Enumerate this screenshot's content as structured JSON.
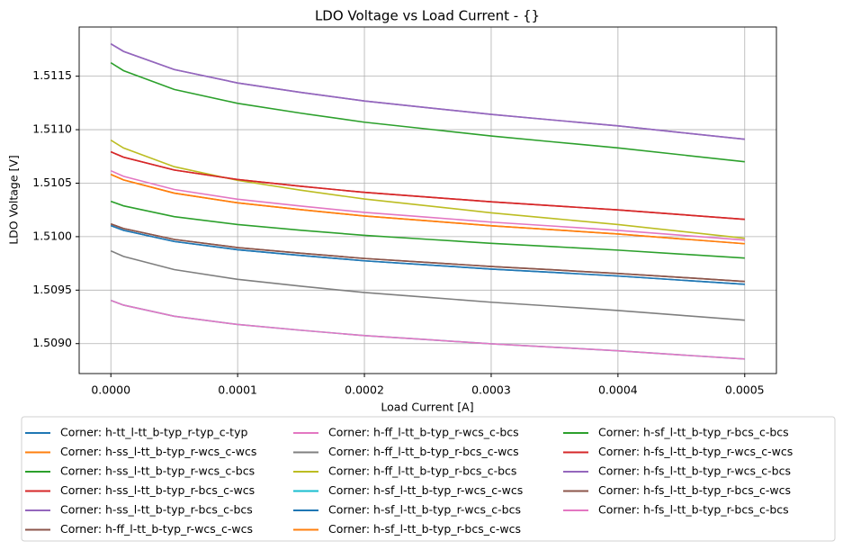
{
  "chart_data": {
    "type": "line",
    "title": "LDO Voltage vs Load Current - {}",
    "x_label": "Load Current [A]",
    "y_label": "LDO Voltage [V]",
    "x": [
      0,
      1e-05,
      5e-05,
      0.0001,
      0.00015,
      0.0002,
      0.00025,
      0.0003,
      0.00035,
      0.0004,
      0.00045,
      0.0005
    ],
    "xlim": [
      -2.5e-05,
      0.000525
    ],
    "xticks": [
      {
        "value": 0,
        "label": "0.0000"
      },
      0.0001,
      0.0002,
      0.0003,
      0.0004,
      0.0005
    ],
    "ylim": [
      1.50872,
      1.51196
    ],
    "yticks": [
      {
        "value": 1.509,
        "label": "1.5090"
      },
      1.5095,
      {
        "value": 1.51,
        "label": "1.5100"
      },
      1.5105,
      {
        "value": 1.511,
        "label": "1.5110"
      },
      1.5115
    ],
    "grid": true,
    "legend": "below",
    "series": [
      {
        "name": "Corner: h-tt_l-tt_b-typ_r-typ_c-typ",
        "color": "#1f77b4",
        "values": [
          1.510103,
          1.510059,
          1.509955,
          1.509878,
          1.509824,
          1.509774,
          1.509736,
          1.509697,
          1.509665,
          1.509632,
          1.509593,
          1.509555
        ]
      },
      {
        "name": "Corner: h-ss_l-tt_b-typ_r-wcs_c-wcs",
        "color": "#ff7f0e",
        "values": [
          1.510582,
          1.51053,
          1.510407,
          1.510316,
          1.510252,
          1.510193,
          1.510148,
          1.510102,
          1.510064,
          1.510025,
          1.509979,
          1.509934
        ]
      },
      {
        "name": "Corner: h-ss_l-tt_b-typ_r-wcs_c-bcs",
        "color": "#2ca02c",
        "values": [
          1.51033,
          1.510288,
          1.510187,
          1.510113,
          1.51006,
          1.510012,
          1.509975,
          1.509938,
          1.509906,
          1.509874,
          1.509837,
          1.5098
        ]
      },
      {
        "name": "Corner: h-ss_l-tt_b-typ_r-bcs_c-wcs",
        "color": "#d62728",
        "values": [
          1.510793,
          1.510743,
          1.510623,
          1.510534,
          1.510471,
          1.510414,
          1.51037,
          1.510326,
          1.510288,
          1.51025,
          1.510206,
          1.510162
        ]
      },
      {
        "name": "Corner: h-ss_l-tt_b-typ_r-bcs_c-bcs",
        "color": "#9467bd",
        "values": [
          1.511803,
          1.511732,
          1.511562,
          1.511437,
          1.511348,
          1.511268,
          1.511205,
          1.511143,
          1.511089,
          1.511036,
          1.510973,
          1.510911
        ]
      },
      {
        "name": "Corner: h-ff_l-tt_b-typ_r-wcs_c-wcs",
        "color": "#8c564b",
        "values": [
          1.510119,
          1.510076,
          1.509974,
          1.509898,
          1.509845,
          1.509796,
          1.509759,
          1.509721,
          1.509689,
          1.509656,
          1.509619,
          1.509581
        ]
      },
      {
        "name": "Corner: h-ff_l-tt_b-typ_r-wcs_c-bcs",
        "color": "#e377c2",
        "values": [
          1.510616,
          1.510564,
          1.510441,
          1.51035,
          1.510286,
          1.510227,
          1.510182,
          1.510136,
          1.510098,
          1.510059,
          1.510013,
          1.509968
        ]
      },
      {
        "name": "Corner: h-ff_l-tt_b-typ_r-bcs_c-wcs",
        "color": "#7f7f7f",
        "values": [
          1.509867,
          1.509815,
          1.509692,
          1.509601,
          1.509537,
          1.509478,
          1.509433,
          1.509387,
          1.509349,
          1.50931,
          1.509264,
          1.509219
        ]
      },
      {
        "name": "Corner: h-ff_l-tt_b-typ_r-bcs_c-bcs",
        "color": "#bcbd22",
        "values": [
          1.510902,
          1.510829,
          1.510654,
          1.510526,
          1.510434,
          1.510352,
          1.510288,
          1.510223,
          1.510168,
          1.510113,
          1.510049,
          1.509985
        ]
      },
      {
        "name": "Corner: h-sf_l-tt_b-typ_r-wcs_c-wcs",
        "color": "#17becf",
        "values": [
          1.509404,
          1.50936,
          1.509256,
          1.509179,
          1.509125,
          1.509075,
          1.509037,
          1.508998,
          1.508966,
          1.508933,
          1.508894,
          1.508856
        ]
      },
      {
        "name": "Corner: h-sf_l-tt_b-typ_r-wcs_c-bcs",
        "color": "#1f77b4",
        "values": [
          1.510103,
          1.510059,
          1.509955,
          1.509878,
          1.509824,
          1.509774,
          1.509736,
          1.509697,
          1.509665,
          1.509632,
          1.509593,
          1.509555
        ]
      },
      {
        "name": "Corner: h-sf_l-tt_b-typ_r-bcs_c-wcs",
        "color": "#ff7f0e",
        "values": [
          1.510582,
          1.51053,
          1.510407,
          1.510316,
          1.510252,
          1.510193,
          1.510148,
          1.510102,
          1.510064,
          1.510025,
          1.509979,
          1.509934
        ]
      },
      {
        "name": "Corner: h-sf_l-tt_b-typ_r-bcs_c-bcs",
        "color": "#2ca02c",
        "values": [
          1.511626,
          1.511552,
          1.511376,
          1.511246,
          1.511154,
          1.51107,
          1.511006,
          1.510941,
          1.510885,
          1.51083,
          1.510765,
          1.5107
        ]
      },
      {
        "name": "Corner: h-fs_l-tt_b-typ_r-wcs_c-wcs",
        "color": "#d62728",
        "values": [
          1.510793,
          1.510743,
          1.510623,
          1.510534,
          1.510471,
          1.510414,
          1.51037,
          1.510326,
          1.510288,
          1.51025,
          1.510206,
          1.510162
        ]
      },
      {
        "name": "Corner: h-fs_l-tt_b-typ_r-wcs_c-bcs",
        "color": "#9467bd",
        "values": [
          1.511803,
          1.511732,
          1.511562,
          1.511437,
          1.511348,
          1.511268,
          1.511205,
          1.511143,
          1.511089,
          1.511036,
          1.510973,
          1.510911
        ]
      },
      {
        "name": "Corner: h-fs_l-tt_b-typ_r-bcs_c-wcs",
        "color": "#8c564b",
        "values": [
          1.510119,
          1.510076,
          1.509974,
          1.509898,
          1.509845,
          1.509796,
          1.509759,
          1.509721,
          1.509689,
          1.509656,
          1.509619,
          1.509581
        ]
      },
      {
        "name": "Corner: h-fs_l-tt_b-typ_r-bcs_c-bcs",
        "color": "#e377c2",
        "values": [
          1.509404,
          1.50936,
          1.509256,
          1.509179,
          1.509125,
          1.509075,
          1.509037,
          1.508998,
          1.508966,
          1.508933,
          1.508894,
          1.508856
        ]
      }
    ]
  }
}
